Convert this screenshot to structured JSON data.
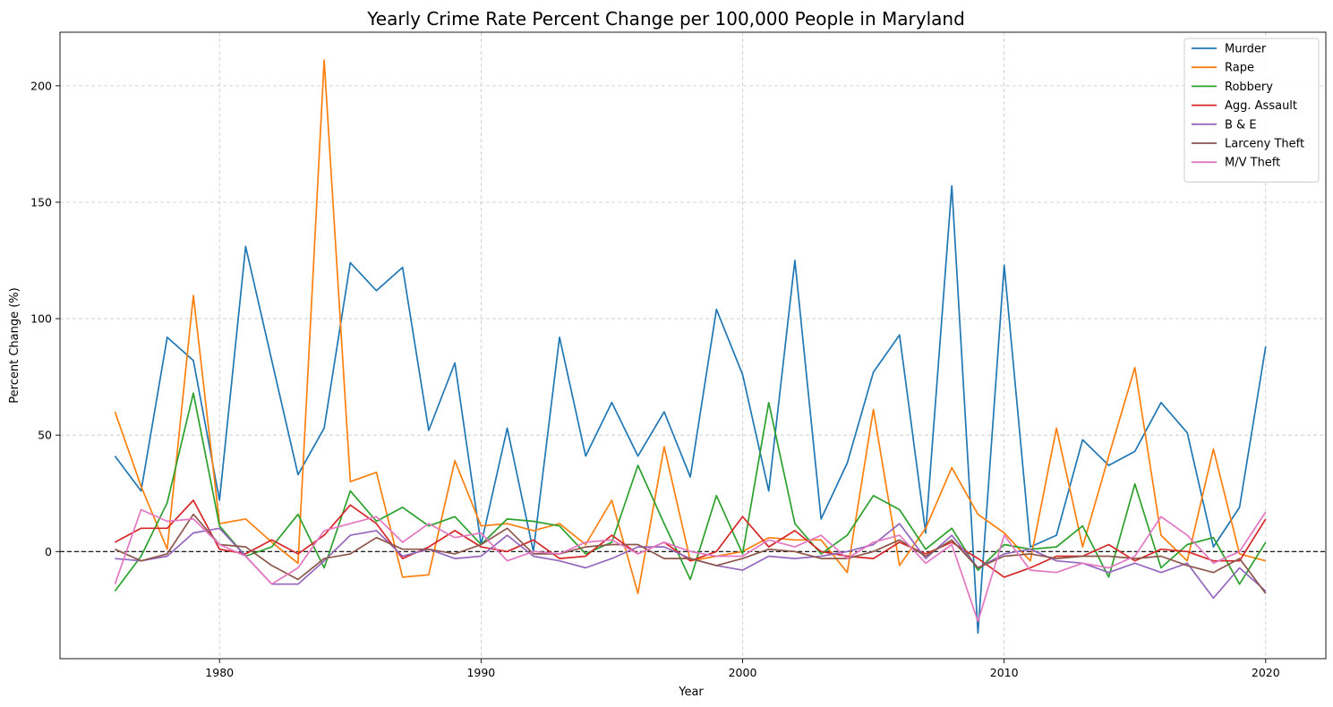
{
  "chart_data": {
    "type": "line",
    "title": "Yearly Crime Rate Percent Change per 100,000 People in Maryland",
    "xlabel": "Year",
    "ylabel": "Percent Change (%)",
    "xlim": [
      1973.9,
      2022.3
    ],
    "ylim": [
      -46,
      223
    ],
    "xticks": [
      1980,
      1990,
      2000,
      2010,
      2020
    ],
    "yticks": [
      0,
      50,
      100,
      150,
      200
    ],
    "grid": true,
    "legend_position": "top-right",
    "reference_line": 0,
    "x": [
      1976,
      1977,
      1978,
      1979,
      1980,
      1981,
      1982,
      1983,
      1984,
      1985,
      1986,
      1987,
      1988,
      1989,
      1990,
      1991,
      1992,
      1993,
      1994,
      1995,
      1996,
      1997,
      1998,
      1999,
      2000,
      2001,
      2002,
      2003,
      2004,
      2005,
      2006,
      2007,
      2008,
      2009,
      2010,
      2011,
      2012,
      2013,
      2014,
      2015,
      2016,
      2017,
      2018,
      2019,
      2020
    ],
    "series": [
      {
        "name": "Murder",
        "color": "#1f77b4",
        "values": [
          41,
          26,
          92,
          82,
          22,
          131,
          82,
          33,
          53,
          124,
          112,
          122,
          52,
          81,
          3,
          53,
          0,
          92,
          41,
          64,
          41,
          60,
          32,
          104,
          76,
          26,
          125,
          14,
          38,
          77,
          93,
          8,
          157,
          -35,
          123,
          2,
          7,
          48,
          37,
          43,
          64,
          51,
          2,
          19,
          88
        ]
      },
      {
        "name": "Rape",
        "color": "#ff7f0e",
        "values": [
          60,
          28,
          1,
          110,
          12,
          14,
          4,
          -5,
          211,
          30,
          34,
          -11,
          -10,
          39,
          11,
          12,
          9,
          12,
          3,
          22,
          -18,
          45,
          -4,
          -2,
          0,
          6,
          5,
          5,
          -9,
          61,
          -6,
          10,
          36,
          16,
          8,
          -4,
          53,
          2,
          41,
          79,
          7,
          -4,
          44,
          -1,
          -4
        ]
      },
      {
        "name": "Robbery",
        "color": "#2ca02c",
        "values": [
          -17,
          -2,
          21,
          68,
          11,
          -2,
          2,
          16,
          -7,
          26,
          13,
          19,
          11,
          15,
          3,
          14,
          13,
          11,
          -1,
          4,
          37,
          12,
          -12,
          24,
          -1,
          64,
          12,
          -1,
          7,
          24,
          18,
          1,
          10,
          -8,
          3,
          1,
          2,
          11,
          -11,
          29,
          -7,
          3,
          6,
          -14,
          4
        ]
      },
      {
        "name": "Agg. Assault",
        "color": "#d62728",
        "values": [
          4,
          10,
          10,
          22,
          1,
          -1,
          5,
          -1,
          7,
          20,
          12,
          -3,
          2,
          9,
          2,
          0,
          5,
          -3,
          -2,
          7,
          -1,
          4,
          -4,
          0,
          15,
          2,
          9,
          0,
          -2,
          -3,
          4,
          -1,
          4,
          -3,
          -11,
          -7,
          -2,
          -2,
          3,
          -4,
          1,
          0,
          -4,
          -4,
          14
        ]
      },
      {
        "name": "B & E",
        "color": "#9467bd",
        "values": [
          -3,
          -4,
          -2,
          8,
          10,
          -2,
          -14,
          -14,
          -4,
          7,
          9,
          -2,
          1,
          -3,
          -2,
          7,
          -2,
          -4,
          -7,
          -3,
          2,
          2,
          -3,
          -6,
          -8,
          -2,
          -3,
          -2,
          0,
          3,
          12,
          -3,
          7,
          -7,
          -1,
          1,
          -4,
          -5,
          -9,
          -5,
          -9,
          -5,
          -20,
          -7,
          -17
        ]
      },
      {
        "name": "Larceny Theft",
        "color": "#8c564b",
        "values": [
          1,
          -4,
          -1,
          16,
          3,
          2,
          -6,
          -12,
          -3,
          -1,
          6,
          1,
          1,
          -1,
          3,
          10,
          -1,
          -1,
          2,
          3,
          3,
          -3,
          -3,
          -6,
          -3,
          1,
          0,
          -3,
          -3,
          0,
          5,
          -2,
          5,
          -7,
          -2,
          -1,
          -3,
          -2,
          -2,
          -3,
          -2,
          -6,
          -9,
          -3,
          -18
        ]
      },
      {
        "name": "M/V Theft",
        "color": "#e377c2",
        "values": [
          -14,
          18,
          13,
          14,
          3,
          -2,
          -14,
          -7,
          9,
          12,
          15,
          4,
          12,
          6,
          8,
          -4,
          0,
          -1,
          4,
          5,
          -1,
          4,
          0,
          -2,
          -2,
          5,
          2,
          7,
          -3,
          4,
          7,
          -5,
          3,
          -30,
          7,
          -8,
          -9,
          -5,
          -7,
          -2,
          15,
          7,
          -5,
          0,
          17
        ]
      }
    ]
  }
}
